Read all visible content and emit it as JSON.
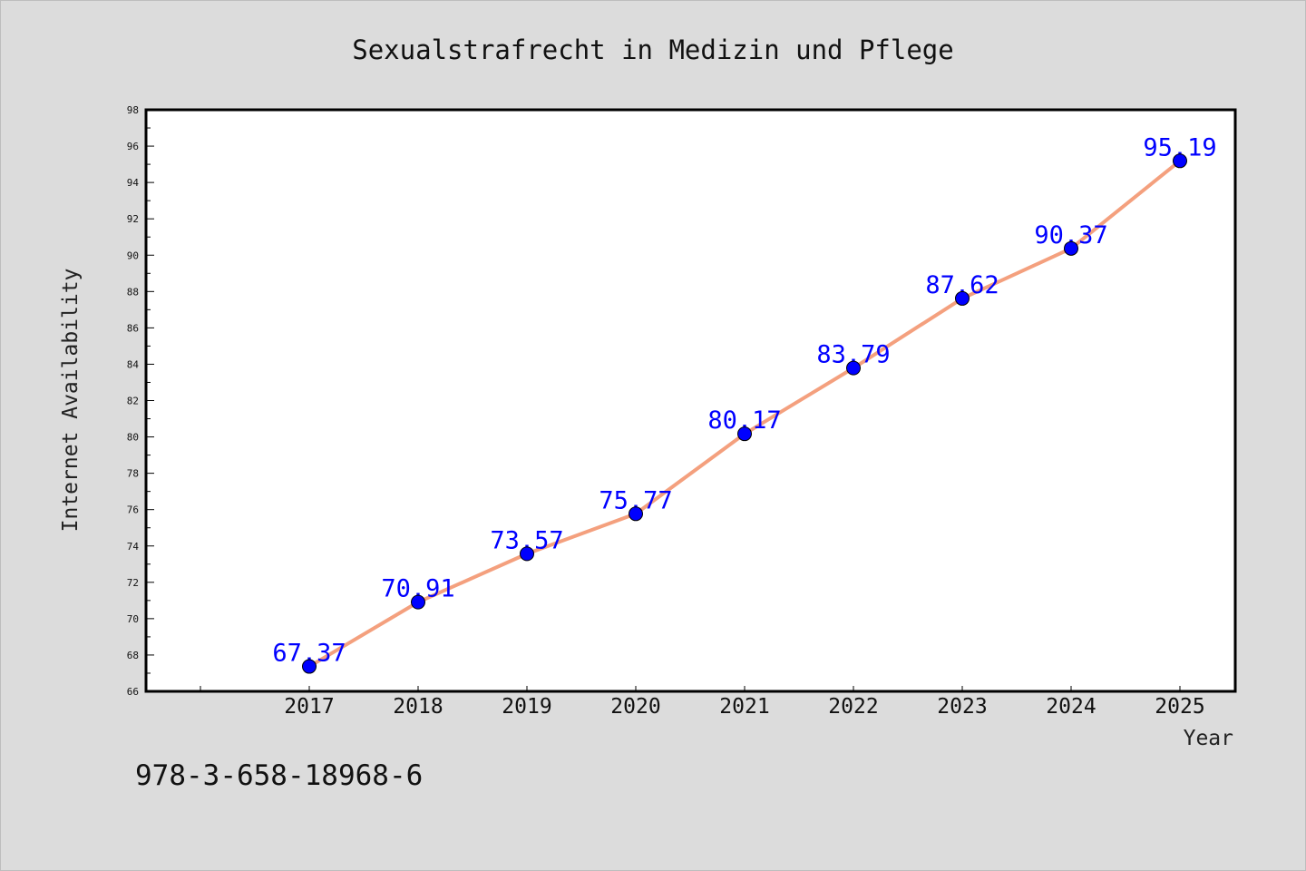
{
  "chart_data": {
    "type": "line",
    "title": "Sexualstrafrecht in Medizin und Pflege",
    "xlabel": "Year",
    "ylabel": "Internet Availability",
    "categories": [
      "2017",
      "2018",
      "2019",
      "2020",
      "2021",
      "2022",
      "2023",
      "2024",
      "2025"
    ],
    "series": [
      {
        "values": [
          67.37,
          70.91,
          73.57,
          75.77,
          80.17,
          83.79,
          87.62,
          90.37,
          95.19
        ]
      }
    ],
    "data_labels": [
      "67.37",
      "70.91",
      "73.57",
      "75.77",
      "80.17",
      "83.79",
      "87.62",
      "90.37",
      "95.19"
    ],
    "ylim": [
      66,
      98
    ],
    "y_major_step": 2,
    "y_minor_step": 1,
    "grid": false,
    "legend": "none",
    "line_color": "#f4a07e",
    "marker_color": "#0000ff",
    "data_label_color": "#0000ff",
    "plot_background": "#ffffff",
    "background": "#dcdcdc"
  },
  "footer": {
    "text": "978-3-658-18968-6"
  }
}
